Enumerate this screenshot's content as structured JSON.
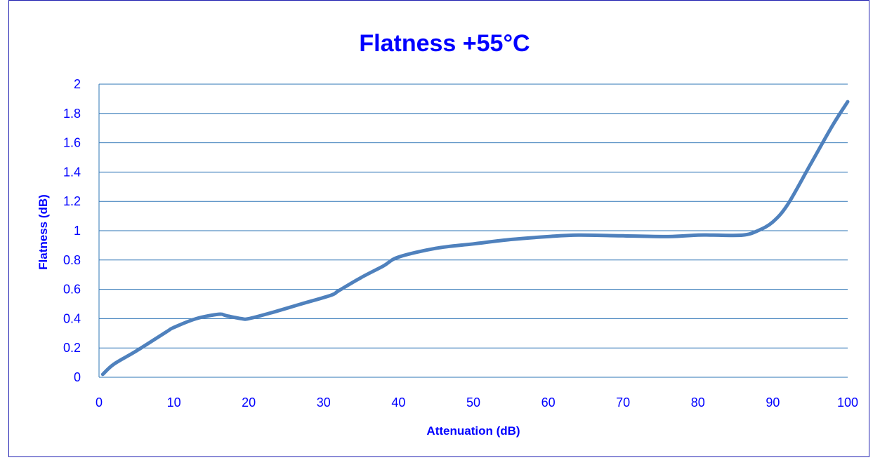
{
  "chart_data": {
    "type": "line",
    "title": "Flatness +55°C",
    "xlabel": "Attenuation (dB)",
    "ylabel": "Flatness (dB)",
    "xlim": [
      0,
      100
    ],
    "ylim": [
      0,
      2
    ],
    "x_ticks": [
      "0",
      "10",
      "20",
      "30",
      "40",
      "50",
      "60",
      "70",
      "80",
      "90",
      "100"
    ],
    "y_ticks": [
      "0",
      "0.2",
      "0.4",
      "0.6",
      "0.8",
      "1",
      "1.2",
      "1.4",
      "1.6",
      "1.8",
      "2"
    ],
    "grid": true,
    "legend": "none",
    "series": [
      {
        "color": "#4f81bd",
        "x": [
          0.5,
          2,
          5,
          9,
          10,
          13,
          16,
          17,
          19,
          20,
          23,
          27,
          31,
          32,
          35,
          38,
          40,
          45,
          50,
          55,
          60,
          64,
          70,
          76,
          80,
          82,
          86,
          88,
          90,
          92,
          95,
          98,
          100
        ],
        "y": [
          0.02,
          0.09,
          0.18,
          0.31,
          0.34,
          0.4,
          0.43,
          0.42,
          0.4,
          0.4,
          0.44,
          0.5,
          0.56,
          0.59,
          0.68,
          0.76,
          0.82,
          0.88,
          0.91,
          0.94,
          0.96,
          0.97,
          0.965,
          0.96,
          0.97,
          0.97,
          0.97,
          1.0,
          1.06,
          1.18,
          1.45,
          1.72,
          1.88
        ]
      }
    ]
  }
}
